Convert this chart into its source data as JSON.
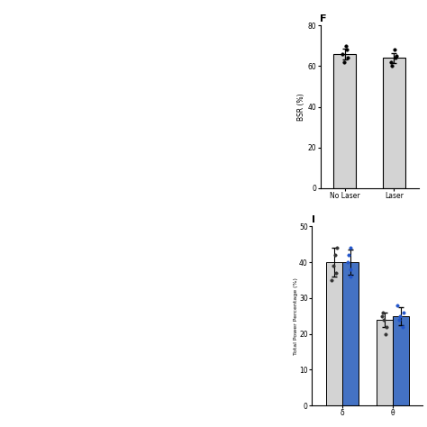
{
  "panel_F": {
    "title": "F",
    "categories": [
      "No Laser",
      "Laser"
    ],
    "values": [
      66,
      64
    ],
    "errors": [
      2.5,
      2.5
    ],
    "bar_colors": [
      "#d3d3d3",
      "#d3d3d3"
    ],
    "ylabel": "BSR (%)",
    "ylim": [
      0,
      80
    ],
    "yticks": [
      0,
      20,
      40,
      60,
      80
    ],
    "scatter_points_nolaser": [
      62,
      64,
      68,
      70,
      66
    ],
    "scatter_points_laser": [
      60,
      62,
      65,
      68,
      64
    ]
  },
  "panel_I": {
    "title": "I",
    "categories": [
      "δ",
      "θ"
    ],
    "bar1_color": "#d3d3d3",
    "bar2_color": "#4472c4",
    "delta_nolaser": 40.0,
    "delta_laser": 40.0,
    "theta_nolaser": 24.0,
    "theta_laser": 25.0,
    "delta_err_nolaser": 4.0,
    "delta_err_laser": 3.5,
    "theta_err_nolaser": 2.0,
    "theta_err_laser": 2.5,
    "ylabel": "Total Power Percentage (%)",
    "ylim": [
      0,
      50
    ],
    "yticks": [
      0,
      10,
      20,
      30,
      40,
      50
    ],
    "scatter_delta_nolaser": [
      35,
      37,
      39,
      42,
      44
    ],
    "scatter_delta_laser": [
      36,
      38,
      40,
      42,
      44
    ],
    "scatter_theta_nolaser": [
      20,
      22,
      24,
      25,
      26
    ],
    "scatter_theta_laser": [
      22,
      24,
      25,
      26,
      28
    ]
  },
  "background_color": "#ffffff",
  "fig_width": 4.74,
  "fig_height": 4.74,
  "dpi": 100
}
